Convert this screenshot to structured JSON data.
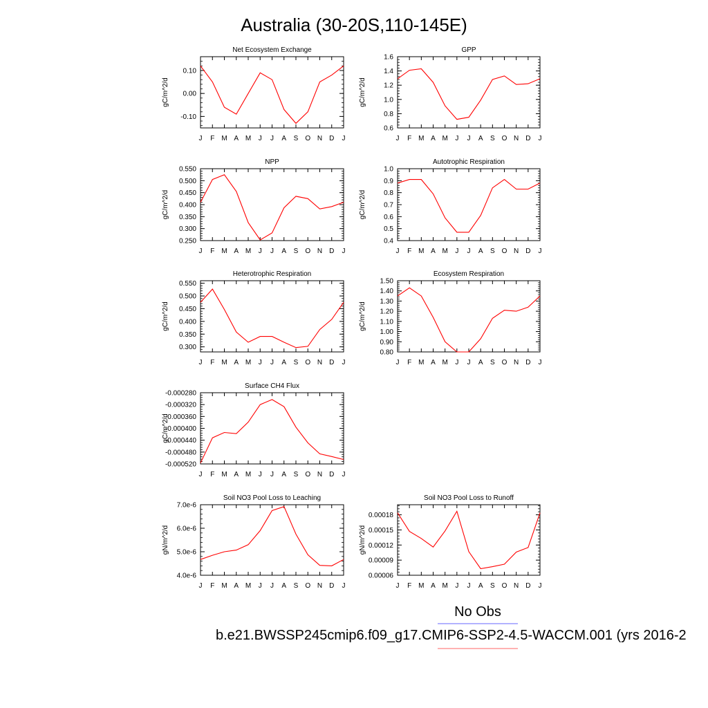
{
  "page": {
    "title": "Australia (30-20S,110-145E)",
    "legend_obs": "No Obs",
    "case_label": "b.e21.BWSSP245cmip6.f09_g17.CMIP6-SSP2-4.5-WACCM.001 (yrs 2016-2",
    "obs_line_color": "#6666ff",
    "model_line_color": "#ff6666",
    "series_color": "#ff0000"
  },
  "chart_data": [
    {
      "type": "line",
      "title": "Net Ecosystem Exchange",
      "ylabel": "gC/m^2/d",
      "categories": [
        "J",
        "F",
        "M",
        "A",
        "M",
        "J",
        "J",
        "A",
        "S",
        "O",
        "N",
        "D",
        "J"
      ],
      "values": [
        0.12,
        0.05,
        -0.06,
        -0.09,
        0.0,
        0.09,
        0.06,
        -0.07,
        -0.13,
        -0.08,
        0.05,
        0.08,
        0.12
      ],
      "ylim": [
        -0.15,
        0.16
      ],
      "yticks": [
        -0.1,
        0.0,
        0.1
      ],
      "yticklabels": [
        "-0.10",
        "0.00",
        "0.10"
      ]
    },
    {
      "type": "line",
      "title": "GPP",
      "ylabel": "gC/m^2/d",
      "categories": [
        "J",
        "F",
        "M",
        "A",
        "M",
        "J",
        "J",
        "A",
        "S",
        "O",
        "N",
        "D",
        "J"
      ],
      "values": [
        1.29,
        1.41,
        1.43,
        1.24,
        0.91,
        0.72,
        0.75,
        0.99,
        1.28,
        1.33,
        1.21,
        1.22,
        1.29
      ],
      "ylim": [
        0.6,
        1.6
      ],
      "yticks": [
        0.6,
        0.8,
        1.0,
        1.2,
        1.4,
        1.6
      ],
      "yticklabels": [
        "0.6",
        "0.8",
        "1.0",
        "1.2",
        "1.4",
        "1.6"
      ]
    },
    {
      "type": "line",
      "title": "NPP",
      "ylabel": "gC/m^2/d",
      "categories": [
        "J",
        "F",
        "M",
        "A",
        "M",
        "J",
        "J",
        "A",
        "S",
        "O",
        "N",
        "D",
        "J"
      ],
      "values": [
        0.41,
        0.505,
        0.525,
        0.455,
        0.325,
        0.253,
        0.282,
        0.387,
        0.435,
        0.425,
        0.382,
        0.392,
        0.41
      ],
      "ylim": [
        0.25,
        0.55
      ],
      "yticks": [
        0.25,
        0.3,
        0.35,
        0.4,
        0.45,
        0.5,
        0.55
      ],
      "yticklabels": [
        "0.250",
        "0.300",
        "0.350",
        "0.400",
        "0.450",
        "0.500",
        "0.550"
      ]
    },
    {
      "type": "line",
      "title": "Autotrophic Respiration",
      "ylabel": "gC/m^2/d",
      "categories": [
        "J",
        "F",
        "M",
        "A",
        "M",
        "J",
        "J",
        "A",
        "S",
        "O",
        "N",
        "D",
        "J"
      ],
      "values": [
        0.88,
        0.91,
        0.91,
        0.79,
        0.59,
        0.47,
        0.47,
        0.61,
        0.84,
        0.91,
        0.83,
        0.83,
        0.88
      ],
      "ylim": [
        0.4,
        1.0
      ],
      "yticks": [
        0.4,
        0.5,
        0.6,
        0.7,
        0.8,
        0.9,
        1.0
      ],
      "yticklabels": [
        "0.4",
        "0.5",
        "0.6",
        "0.7",
        "0.8",
        "0.9",
        "1.0"
      ]
    },
    {
      "type": "line",
      "title": "Heterotrophic Respiration",
      "ylabel": "gC/m^2/d",
      "categories": [
        "J",
        "F",
        "M",
        "A",
        "M",
        "J",
        "J",
        "A",
        "S",
        "O",
        "N",
        "D",
        "J"
      ],
      "values": [
        0.475,
        0.527,
        0.447,
        0.358,
        0.318,
        0.341,
        0.341,
        0.318,
        0.297,
        0.302,
        0.368,
        0.408,
        0.475
      ],
      "ylim": [
        0.28,
        0.56
      ],
      "yticks": [
        0.3,
        0.35,
        0.4,
        0.45,
        0.5,
        0.55
      ],
      "yticklabels": [
        "0.300",
        "0.350",
        "0.400",
        "0.450",
        "0.500",
        "0.550"
      ]
    },
    {
      "type": "line",
      "title": "Ecosystem Respiration",
      "ylabel": "gC/m^2/d",
      "categories": [
        "J",
        "F",
        "M",
        "A",
        "M",
        "J",
        "J",
        "A",
        "S",
        "O",
        "N",
        "D",
        "J"
      ],
      "values": [
        1.35,
        1.43,
        1.35,
        1.14,
        0.9,
        0.8,
        0.8,
        0.93,
        1.13,
        1.21,
        1.2,
        1.24,
        1.35
      ],
      "ylim": [
        0.8,
        1.5
      ],
      "yticks": [
        0.8,
        0.9,
        1.0,
        1.1,
        1.2,
        1.3,
        1.4,
        1.5
      ],
      "yticklabels": [
        "0.80",
        "0.90",
        "1.00",
        "1.10",
        "1.20",
        "1.30",
        "1.40",
        "1.50"
      ]
    },
    {
      "type": "line",
      "title": "Surface CH4 Flux",
      "ylabel": "gC/m^2/d",
      "categories": [
        "J",
        "F",
        "M",
        "A",
        "M",
        "J",
        "J",
        "A",
        "S",
        "O",
        "N",
        "D",
        "J"
      ],
      "values": [
        -0.000517,
        -0.000432,
        -0.000414,
        -0.000418,
        -0.000379,
        -0.00032,
        -0.000303,
        -0.000327,
        -0.000396,
        -0.000449,
        -0.000486,
        -0.000495,
        -0.000505
      ],
      "ylim": [
        -0.00052,
        -0.00028
      ],
      "yticks": [
        -0.00052,
        -0.00048,
        -0.00044,
        -0.0004,
        -0.00036,
        -0.00032,
        -0.00028
      ],
      "yticklabels": [
        "-0.000520",
        "-0.000480",
        "-0.000440",
        "-0.000400",
        "-0.000360",
        "-0.000320",
        "-0.000280"
      ]
    },
    {
      "type": "line",
      "title": "Soil NO3 Pool Loss to Leaching",
      "ylabel": "gN/m^2/d",
      "categories": [
        "J",
        "F",
        "M",
        "A",
        "M",
        "J",
        "J",
        "A",
        "S",
        "O",
        "N",
        "D",
        "J"
      ],
      "values": [
        4.67e-06,
        4.85e-06,
        5e-06,
        5.07e-06,
        5.3e-06,
        5.9e-06,
        6.75e-06,
        6.92e-06,
        5.75e-06,
        4.87e-06,
        4.42e-06,
        4.4e-06,
        4.67e-06
      ],
      "ylim": [
        4e-06,
        7e-06
      ],
      "yticks": [
        4e-06,
        5e-06,
        6e-06,
        7e-06
      ],
      "yticklabels": [
        "4.0e-6",
        "5.0e-6",
        "6.0e-6",
        "7.0e-6"
      ]
    },
    {
      "type": "line",
      "title": "Soil NO3 Pool Loss to Runoff",
      "ylabel": "gN/m^2/d",
      "categories": [
        "J",
        "F",
        "M",
        "A",
        "M",
        "J",
        "J",
        "A",
        "S",
        "O",
        "N",
        "D",
        "J"
      ],
      "values": [
        0.000184,
        0.000147,
        0.000133,
        0.000116,
        0.000148,
        0.000187,
        0.000107,
        7.3e-05,
        7.7e-05,
        8.2e-05,
        0.000106,
        0.000115,
        0.000184
      ],
      "ylim": [
        6e-05,
        0.0002
      ],
      "yticks": [
        6e-05,
        9e-05,
        0.00012,
        0.00015,
        0.00018
      ],
      "yticklabels": [
        "0.00006",
        "0.00009",
        "0.00012",
        "0.00015",
        "0.00018"
      ]
    }
  ]
}
